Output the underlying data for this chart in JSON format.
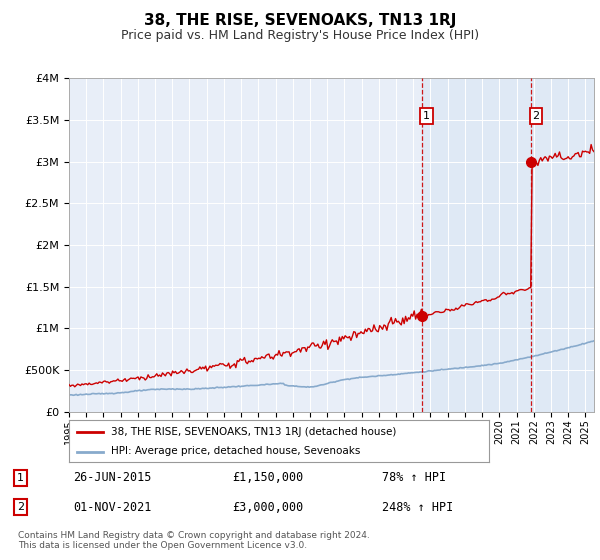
{
  "title": "38, THE RISE, SEVENOAKS, TN13 1RJ",
  "subtitle": "Price paid vs. HM Land Registry's House Price Index (HPI)",
  "background_color": "#ffffff",
  "plot_bg_color": "#e8eef8",
  "red_line_label": "38, THE RISE, SEVENOAKS, TN13 1RJ (detached house)",
  "blue_line_label": "HPI: Average price, detached house, Sevenoaks",
  "annotation1_date": "26-JUN-2015",
  "annotation1_price": "£1,150,000",
  "annotation1_hpi": "78% ↑ HPI",
  "annotation2_date": "01-NOV-2021",
  "annotation2_price": "£3,000,000",
  "annotation2_hpi": "248% ↑ HPI",
  "footer": "Contains HM Land Registry data © Crown copyright and database right 2024.\nThis data is licensed under the Open Government Licence v3.0.",
  "ylim": [
    0,
    4000000
  ],
  "yticks": [
    0,
    500000,
    1000000,
    1500000,
    2000000,
    2500000,
    3000000,
    3500000,
    4000000
  ],
  "ytick_labels": [
    "£0",
    "£500K",
    "£1M",
    "£1.5M",
    "£2M",
    "£2.5M",
    "£3M",
    "£3.5M",
    "£4M"
  ],
  "xlim_start": 1995.0,
  "xlim_end": 2025.5,
  "vline1_x": 2015.48,
  "vline2_x": 2021.83,
  "marker1_y": 1150000,
  "marker2_y": 3000000,
  "red_color": "#cc0000",
  "blue_color": "#88aacc",
  "shade_color": "#dde8f5",
  "vline_color": "#cc0000",
  "title_fontsize": 11,
  "subtitle_fontsize": 9
}
